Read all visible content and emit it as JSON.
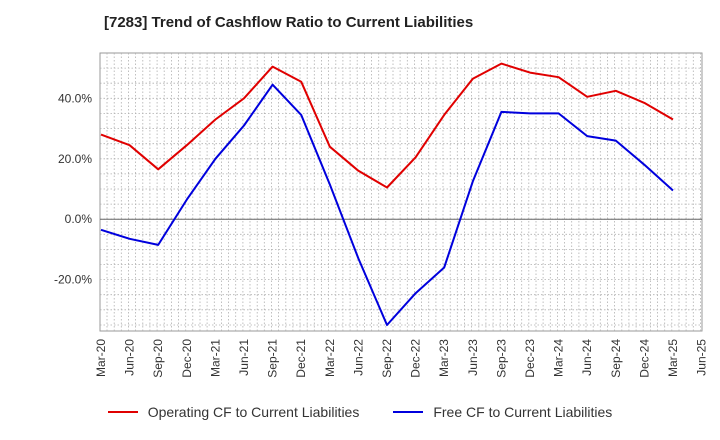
{
  "chart_data": {
    "type": "line",
    "title": "[7283]  Trend of Cashflow Ratio to Current Liabilities",
    "xlabel": "",
    "ylabel": "",
    "x_tick_labels": [
      "Mar-20",
      "Jun-20",
      "Sep-20",
      "Dec-20",
      "Mar-21",
      "Jun-21",
      "Sep-21",
      "Dec-21",
      "Mar-22",
      "Jun-22",
      "Sep-22",
      "Dec-22",
      "Mar-23",
      "Jun-23",
      "Sep-23",
      "Dec-23",
      "Mar-24",
      "Jun-24",
      "Sep-24",
      "Dec-24",
      "Mar-25",
      "Jun-25"
    ],
    "y_tick_labels": [
      "-20.0%",
      "0.0%",
      "20.0%",
      "40.0%"
    ],
    "ylim": [
      -37,
      55
    ],
    "y_ticks": [
      -20,
      0,
      20,
      40
    ],
    "grid": true,
    "legend_position": "bottom",
    "categories": [
      "Mar-20",
      "Jun-20",
      "Sep-20",
      "Dec-20",
      "Mar-21",
      "Jun-21",
      "Sep-21",
      "Dec-21",
      "Mar-22",
      "Jun-22",
      "Sep-22",
      "Dec-22",
      "Mar-23",
      "Jun-23",
      "Sep-23",
      "Dec-23",
      "Mar-24",
      "Jun-24",
      "Sep-24",
      "Dec-24",
      "Mar-25"
    ],
    "series": [
      {
        "name": "Operating CF to Current Liabilities",
        "color": "#e00000",
        "values": [
          28.0,
          24.5,
          16.5,
          24.5,
          33.0,
          40.0,
          50.5,
          45.5,
          24.0,
          16.0,
          10.5,
          20.5,
          34.5,
          46.5,
          51.5,
          48.5,
          47.0,
          40.5,
          42.5,
          38.5,
          33.0
        ]
      },
      {
        "name": "Free CF to Current Liabilities",
        "color": "#0000dd",
        "values": [
          -3.5,
          -6.5,
          -8.5,
          6.5,
          20.0,
          31.0,
          44.5,
          34.5,
          11.5,
          -13.0,
          -35.0,
          -24.5,
          -16.0,
          12.5,
          35.5,
          35.0,
          35.0,
          27.5,
          26.0,
          18.0,
          9.5
        ]
      }
    ]
  }
}
